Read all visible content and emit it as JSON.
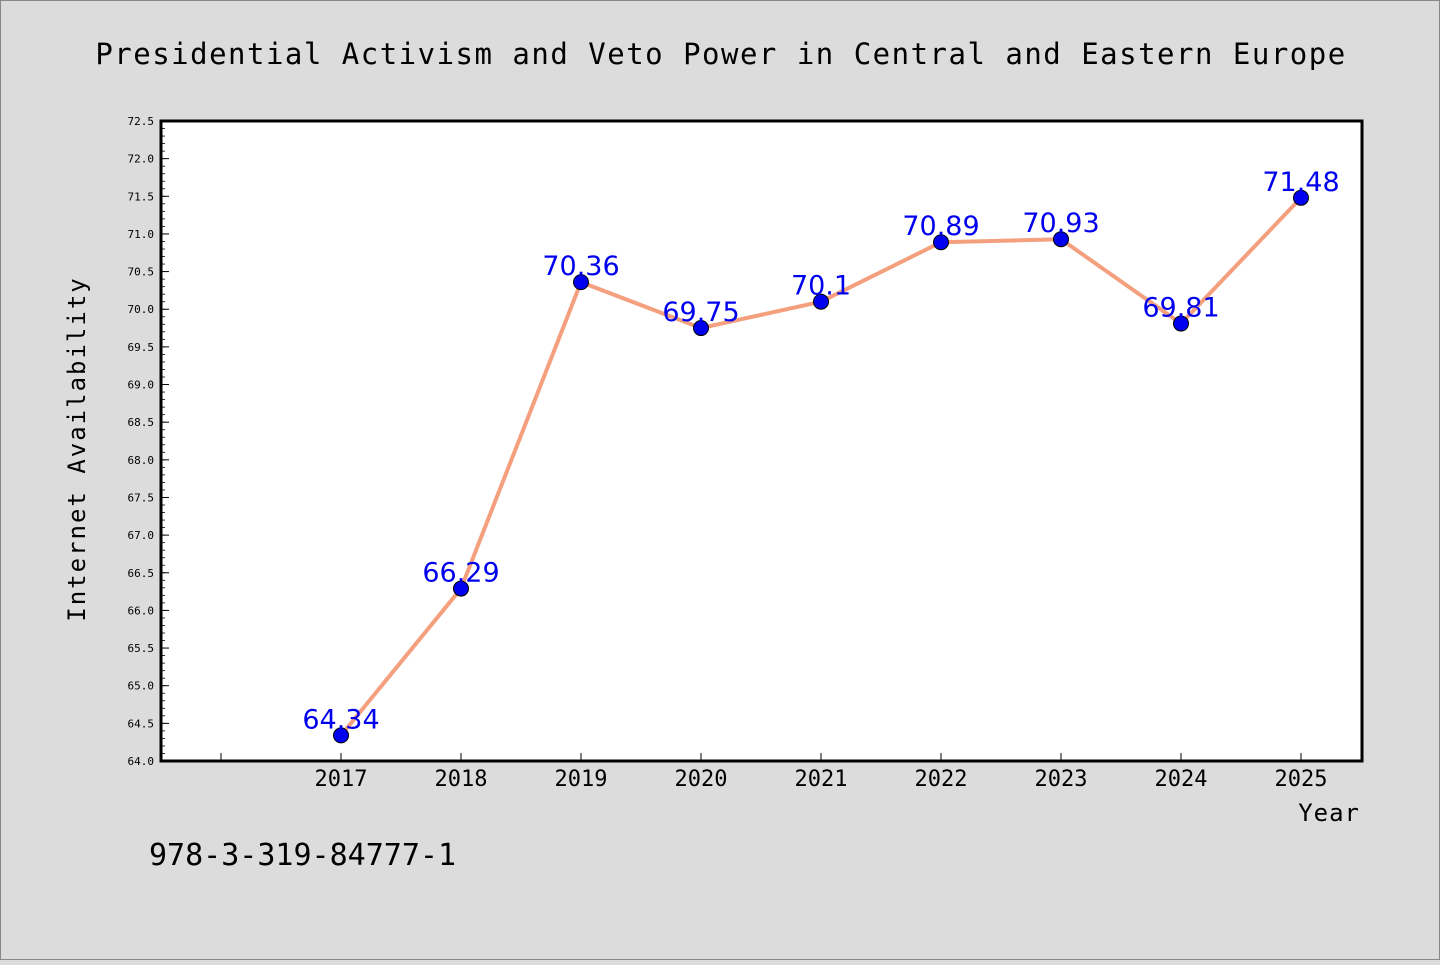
{
  "chart_data": {
    "type": "line",
    "title": "Presidential Activism and Veto Power in Central and Eastern Europe",
    "xlabel": "Year",
    "ylabel": "Internet Availability",
    "categories": [
      "2017",
      "2018",
      "2019",
      "2020",
      "2021",
      "2022",
      "2023",
      "2024",
      "2025"
    ],
    "values": [
      64.34,
      66.29,
      70.36,
      69.75,
      70.1,
      70.89,
      70.93,
      69.81,
      71.48
    ],
    "data_labels": [
      "64.34",
      "66.29",
      "70.36",
      "69.75",
      "70.1",
      "70.89",
      "70.93",
      "69.81",
      "71.48"
    ],
    "ylim": [
      64.0,
      72.5
    ],
    "yticks": [
      "64.0",
      "64.5",
      "65.0",
      "65.5",
      "66.0",
      "66.5",
      "67.0",
      "67.5",
      "68.0",
      "68.5",
      "69.0",
      "69.5",
      "70.0",
      "70.5",
      "71.0",
      "71.5",
      "72.0",
      "72.5"
    ],
    "grid": false,
    "line_color": "#f4a07e",
    "marker_color": "#0000ee",
    "label_color": "#0000ee"
  },
  "footer": {
    "isbn": "978-3-319-84777-1"
  }
}
